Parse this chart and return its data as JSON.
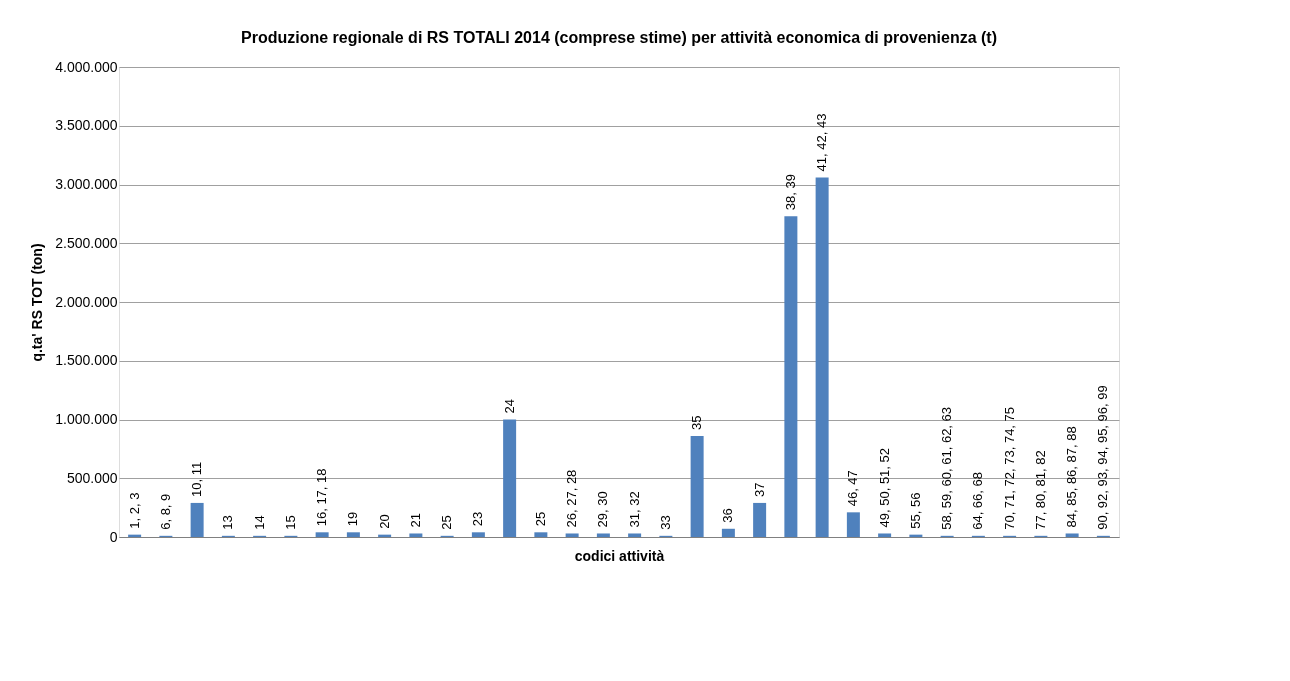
{
  "chart_data": {
    "type": "bar",
    "title": "Produzione regionale di RS TOTALI 2014  (comprese stime) per attività economica di provenienza (t)",
    "xlabel": "codici attività",
    "ylabel": "q.ta' RS TOT (ton)",
    "categories": [
      "1, 2, 3",
      "6, 8, 9",
      "10, 11",
      "13",
      "14",
      "15",
      "16, 17, 18",
      "19",
      "20",
      "21",
      "25",
      "23",
      "24",
      "25",
      "26, 27, 28",
      "29, 30",
      "31, 32",
      "33",
      "35",
      "36",
      "37",
      "38, 39",
      "41, 42, 43",
      "46, 47",
      "49, 50, 51, 52",
      "55, 56",
      "58, 59, 60, 61, 62, 63",
      "64, 66, 68",
      "70, 71, 72, 73, 74, 75",
      "77, 80, 81, 82",
      "84, 85, 86, 87, 88",
      "90, 92, 93, 94, 95, 96, 99"
    ],
    "values": [
      20000,
      10000,
      290000,
      10000,
      10000,
      10000,
      40000,
      40000,
      20000,
      30000,
      10000,
      40000,
      1000000,
      40000,
      30000,
      30000,
      30000,
      10000,
      860000,
      70000,
      290000,
      2730000,
      3060000,
      210000,
      30000,
      20000,
      10000,
      10000,
      10000,
      10000,
      30000,
      10000
    ],
    "color": "#4f81bd",
    "ylim": [
      0,
      4000000
    ],
    "yticks": [
      0,
      {
        "value": 500000,
        "label": "500.000"
      },
      {
        "value": 1000000,
        "label": "1.000.000"
      },
      {
        "value": 1500000,
        "label": "1.500.000"
      },
      {
        "value": 2000000,
        "label": "2.000.000"
      },
      {
        "value": 2500000,
        "label": "2.500.000"
      },
      {
        "value": 3000000,
        "label": "3.000.000"
      },
      {
        "value": 3500000,
        "label": "3.500.000"
      },
      {
        "value": 4000000,
        "label": "4.000.000"
      }
    ],
    "grid": "y"
  }
}
